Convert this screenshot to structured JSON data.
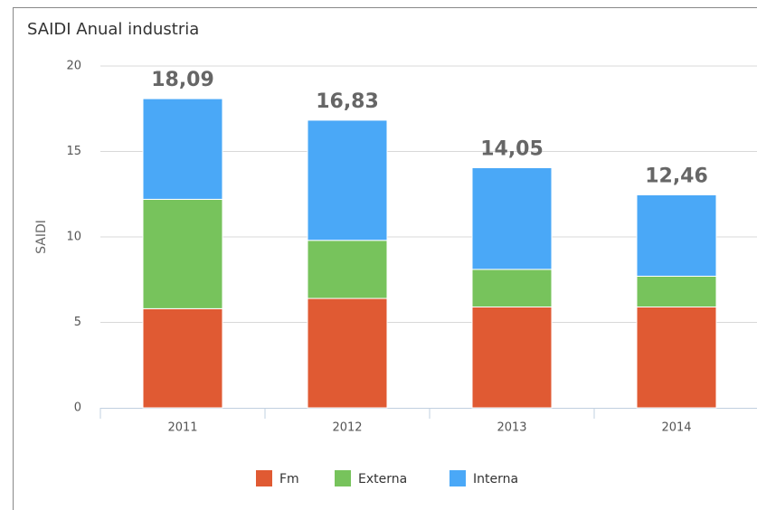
{
  "chart_data": {
    "type": "stacked_bar",
    "title": "SAIDI Anual industria",
    "y_label": "SAIDI",
    "categories": [
      "2011",
      "2012",
      "2013",
      "2014"
    ],
    "series": [
      {
        "name": "Fm",
        "color": "#e05a33",
        "values": [
          5.8,
          6.4,
          5.9,
          5.9
        ]
      },
      {
        "name": "Externa",
        "color": "#77c35c",
        "values": [
          6.4,
          3.4,
          2.2,
          1.8
        ]
      },
      {
        "name": "Interna",
        "color": "#4aa8f7",
        "values": [
          5.89,
          7.03,
          5.95,
          4.76
        ]
      }
    ],
    "totals": [
      18.09,
      16.83,
      14.05,
      12.46
    ],
    "total_labels": [
      "18,09",
      "16,83",
      "14,05",
      "12,46"
    ],
    "ylim": [
      0,
      20
    ],
    "yticks": [
      0,
      5,
      10,
      15,
      20
    ],
    "grid": true
  }
}
